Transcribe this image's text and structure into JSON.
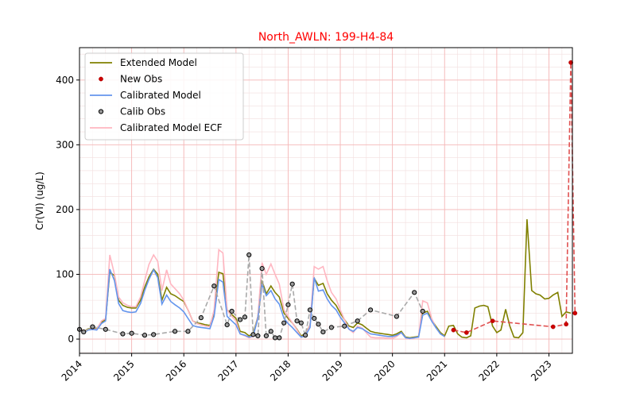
{
  "chart_data": {
    "type": "line",
    "title": "North_AWLN: 199-H4-84",
    "title_color": "#ff0000",
    "xlabel": "",
    "ylabel": "Cr(VI) (ug/L)",
    "xlim": [
      2014.0,
      2023.45
    ],
    "ylim": [
      -22,
      450
    ],
    "x_ticks": [
      2014,
      2015,
      2016,
      2017,
      2018,
      2019,
      2020,
      2021,
      2022,
      2023
    ],
    "x_tick_labels": [
      "2014",
      "2015",
      "2016",
      "2017",
      "2018",
      "2019",
      "2020",
      "2021",
      "2022",
      "2023"
    ],
    "y_ticks": [
      0,
      100,
      200,
      300,
      400
    ],
    "y_tick_labels": [
      "0",
      "100",
      "200",
      "300",
      "400"
    ],
    "grid": true,
    "legend_position": "upper-left",
    "legend": [
      {
        "label": "Extended Model",
        "kind": "line",
        "color": "#808000"
      },
      {
        "label": "New Obs",
        "kind": "point",
        "color": "#cc0000"
      },
      {
        "label": "Calibrated Model",
        "kind": "line",
        "color": "#6495ed"
      },
      {
        "label": "Calib Obs",
        "kind": "point",
        "color": "#999999"
      },
      {
        "label": "Calibrated Model ECF",
        "kind": "line",
        "color": "#ffb6c1"
      }
    ],
    "series": [
      {
        "name": "Extended Model",
        "kind": "line",
        "color": "#808000",
        "x": [
          2014.0,
          2014.08,
          2014.17,
          2014.25,
          2014.33,
          2014.42,
          2014.5,
          2014.58,
          2014.67,
          2014.75,
          2014.83,
          2014.92,
          2015.0,
          2015.08,
          2015.17,
          2015.25,
          2015.33,
          2015.42,
          2015.5,
          2015.58,
          2015.67,
          2015.75,
          2015.83,
          2015.92,
          2016.0,
          2016.08,
          2016.17,
          2016.25,
          2016.33,
          2016.42,
          2016.5,
          2016.58,
          2016.67,
          2016.75,
          2016.83,
          2016.92,
          2017.0,
          2017.08,
          2017.17,
          2017.25,
          2017.33,
          2017.42,
          2017.5,
          2017.58,
          2017.67,
          2017.75,
          2017.83,
          2017.92,
          2018.0,
          2018.08,
          2018.17,
          2018.25,
          2018.33,
          2018.42,
          2018.5,
          2018.58,
          2018.67,
          2018.75,
          2018.83,
          2018.92,
          2019.0,
          2019.08,
          2019.17,
          2019.25,
          2019.33,
          2019.42,
          2019.5,
          2019.58,
          2019.67,
          2019.75,
          2019.83,
          2019.92,
          2020.0,
          2020.08,
          2020.17,
          2020.25,
          2020.33,
          2020.42,
          2020.5,
          2020.58,
          2020.67,
          2020.75,
          2020.83,
          2020.92,
          2021.0,
          2021.08,
          2021.17,
          2021.25,
          2021.33,
          2021.42,
          2021.5,
          2021.58,
          2021.67,
          2021.75,
          2021.83,
          2021.92,
          2022.0,
          2022.08,
          2022.17,
          2022.25,
          2022.33,
          2022.42,
          2022.5,
          2022.58,
          2022.67,
          2022.75,
          2022.83,
          2022.92,
          2023.0,
          2023.08,
          2023.17,
          2023.25,
          2023.33,
          2023.42
        ],
        "y": [
          18,
          12,
          16,
          17,
          16,
          26,
          30,
          103,
          98,
          60,
          52,
          49,
          48,
          48,
          60,
          80,
          96,
          108,
          100,
          60,
          80,
          70,
          67,
          62,
          58,
          45,
          28,
          25,
          24,
          22,
          21,
          40,
          103,
          101,
          45,
          38,
          32,
          12,
          10,
          5,
          8,
          35,
          90,
          70,
          82,
          72,
          65,
          40,
          32,
          25,
          15,
          5,
          8,
          22,
          94,
          83,
          86,
          70,
          60,
          52,
          40,
          30,
          20,
          18,
          25,
          22,
          17,
          12,
          10,
          9,
          8,
          7,
          6,
          8,
          12,
          3,
          2,
          3,
          4,
          40,
          43,
          30,
          20,
          10,
          5,
          20,
          21,
          8,
          3,
          2,
          5,
          48,
          51,
          52,
          50,
          20,
          10,
          14,
          46,
          20,
          3,
          2,
          10,
          185,
          75,
          70,
          68,
          62,
          63,
          68,
          72,
          35,
          42,
          40
        ]
      },
      {
        "name": "Calibrated Model",
        "kind": "line",
        "color": "#6495ed",
        "x": [
          2014.0,
          2014.08,
          2014.17,
          2014.25,
          2014.33,
          2014.42,
          2014.5,
          2014.58,
          2014.67,
          2014.75,
          2014.83,
          2014.92,
          2015.0,
          2015.08,
          2015.17,
          2015.25,
          2015.33,
          2015.42,
          2015.5,
          2015.58,
          2015.67,
          2015.75,
          2015.83,
          2015.92,
          2016.0,
          2016.08,
          2016.17,
          2016.25,
          2016.33,
          2016.42,
          2016.5,
          2016.58,
          2016.67,
          2016.75,
          2016.83,
          2016.92,
          2017.0,
          2017.08,
          2017.17,
          2017.25,
          2017.33,
          2017.42,
          2017.5,
          2017.58,
          2017.67,
          2017.75,
          2017.83,
          2017.92,
          2018.0,
          2018.08,
          2018.17,
          2018.25,
          2018.33,
          2018.42,
          2018.5,
          2018.58,
          2018.67,
          2018.75,
          2018.83,
          2018.92,
          2019.0,
          2019.08,
          2019.17,
          2019.25,
          2019.33,
          2019.42,
          2019.5,
          2019.58,
          2019.67,
          2019.75,
          2019.83,
          2019.92,
          2020.0,
          2020.08,
          2020.17,
          2020.25,
          2020.33,
          2020.42,
          2020.5,
          2020.58,
          2020.67,
          2020.75,
          2020.83,
          2020.92,
          2021.0
        ],
        "y": [
          15,
          10,
          14,
          15,
          14,
          24,
          28,
          108,
          90,
          55,
          44,
          42,
          41,
          42,
          55,
          75,
          92,
          107,
          95,
          54,
          68,
          58,
          53,
          48,
          42,
          32,
          21,
          19,
          18,
          17,
          16,
          35,
          92,
          88,
          35,
          28,
          22,
          8,
          6,
          3,
          5,
          32,
          85,
          67,
          75,
          62,
          54,
          32,
          24,
          18,
          10,
          3,
          5,
          18,
          95,
          74,
          76,
          62,
          52,
          45,
          34,
          25,
          15,
          12,
          18,
          16,
          12,
          8,
          7,
          6,
          5,
          4,
          4,
          6,
          10,
          2,
          1,
          2,
          3,
          37,
          40,
          28,
          18,
          8,
          4
        ]
      },
      {
        "name": "Calibrated Model ECF",
        "kind": "line",
        "color": "#ffb6c1",
        "x": [
          2014.0,
          2014.08,
          2014.17,
          2014.25,
          2014.33,
          2014.42,
          2014.5,
          2014.58,
          2014.67,
          2014.75,
          2014.83,
          2014.92,
          2015.0,
          2015.08,
          2015.17,
          2015.25,
          2015.33,
          2015.42,
          2015.5,
          2015.58,
          2015.67,
          2015.75,
          2015.83,
          2015.92,
          2016.0,
          2016.08,
          2016.17,
          2016.25,
          2016.33,
          2016.42,
          2016.5,
          2016.58,
          2016.67,
          2016.75,
          2016.83,
          2016.92,
          2017.0,
          2017.08,
          2017.17,
          2017.25,
          2017.33,
          2017.42,
          2017.5,
          2017.58,
          2017.67,
          2017.75,
          2017.83,
          2017.92,
          2018.0,
          2018.08,
          2018.17,
          2018.25,
          2018.33,
          2018.42,
          2018.5,
          2018.58,
          2018.67,
          2018.75,
          2018.83,
          2018.92,
          2019.0,
          2019.08,
          2019.17,
          2019.25,
          2019.33,
          2019.42,
          2019.5,
          2019.58,
          2019.67,
          2019.75,
          2019.83,
          2019.92,
          2020.0,
          2020.08,
          2020.17,
          2020.25,
          2020.33,
          2020.42,
          2020.5,
          2020.58,
          2020.67,
          2020.75,
          2020.83,
          2020.92,
          2021.0
        ],
        "y": [
          17,
          12,
          15,
          16,
          15,
          28,
          32,
          130,
          100,
          65,
          56,
          52,
          50,
          50,
          65,
          90,
          115,
          130,
          120,
          75,
          107,
          85,
          78,
          70,
          60,
          45,
          28,
          24,
          22,
          20,
          19,
          45,
          138,
          133,
          45,
          35,
          28,
          8,
          5,
          2,
          4,
          35,
          118,
          100,
          116,
          100,
          85,
          45,
          35,
          25,
          14,
          3,
          6,
          22,
          112,
          108,
          112,
          90,
          72,
          62,
          45,
          30,
          15,
          10,
          20,
          17,
          10,
          3,
          2,
          2,
          2,
          1,
          1,
          4,
          10,
          2,
          0,
          2,
          3,
          59,
          56,
          32,
          18,
          8,
          4
        ]
      },
      {
        "name": "Calib Obs",
        "kind": "scatter-dashed",
        "color": "#999999",
        "x": [
          2014.0,
          2014.08,
          2014.25,
          2014.5,
          2014.83,
          2015.0,
          2015.25,
          2015.42,
          2015.83,
          2016.08,
          2016.33,
          2016.58,
          2016.83,
          2016.92,
          2017.08,
          2017.17,
          2017.25,
          2017.33,
          2017.42,
          2017.5,
          2017.58,
          2017.67,
          2017.75,
          2017.83,
          2017.92,
          2018.0,
          2018.08,
          2018.17,
          2018.25,
          2018.33,
          2018.42,
          2018.5,
          2018.58,
          2018.67,
          2018.83,
          2019.08,
          2019.33,
          2019.58,
          2020.08,
          2020.42,
          2020.58
        ],
        "y": [
          15,
          11,
          19,
          15,
          8,
          9,
          6,
          7,
          12,
          12,
          33,
          82,
          22,
          43,
          30,
          34,
          130,
          7,
          5,
          109,
          5,
          12,
          2,
          2,
          25,
          53,
          85,
          28,
          25,
          6,
          45,
          32,
          23,
          11,
          18,
          20,
          28,
          45,
          35,
          72,
          43
        ]
      },
      {
        "name": "New Obs",
        "kind": "scatter-dashed",
        "color": "#cc0000",
        "x": [
          2021.17,
          2021.42,
          2021.92,
          2023.08,
          2023.33,
          2023.42,
          2023.5
        ],
        "y": [
          14,
          10,
          28,
          19,
          23,
          427,
          40
        ]
      }
    ]
  }
}
